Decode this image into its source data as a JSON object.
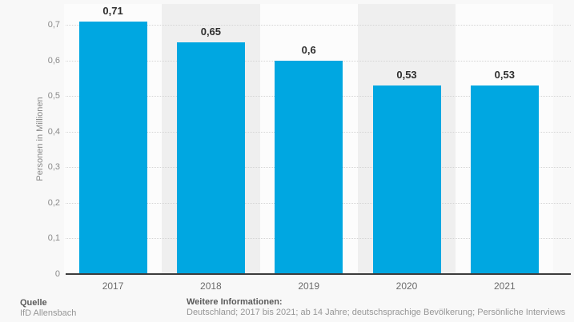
{
  "chart_data": {
    "type": "bar",
    "categories": [
      "2017",
      "2018",
      "2019",
      "2020",
      "2021"
    ],
    "values": [
      0.71,
      0.65,
      0.6,
      0.53,
      0.53
    ],
    "value_labels": [
      "0,71",
      "0,65",
      "0,6",
      "0,53",
      "0,53"
    ],
    "title": "",
    "xlabel": "",
    "ylabel": "Personen in Millionen",
    "ylim": [
      0,
      0.77
    ],
    "yticks": [
      0,
      0.1,
      0.2,
      0.3,
      0.4,
      0.5,
      0.6,
      0.7
    ],
    "ytick_labels": [
      "0",
      "0,1",
      "0,2",
      "0,3",
      "0,4",
      "0,5",
      "0,6",
      "0,7"
    ],
    "grid": "horizontal-dotted",
    "legend": "none",
    "plot_bands": "alternating vertical category bands",
    "colors": {
      "bar": "#00a7e1",
      "band": "#fcfcfc",
      "band_alt": "#efefef",
      "background": "#f8f8f8",
      "grid": "#d4d4d4",
      "axis": "#3c3c3c"
    }
  },
  "footer": {
    "source_label": "Quelle",
    "source": "IfD Allensbach",
    "info_label": "Weitere Informationen:",
    "info": "Deutschland; 2017 bis 2021; ab 14 Jahre; deutschsprachige Bevölkerung; Persönliche Interviews"
  }
}
